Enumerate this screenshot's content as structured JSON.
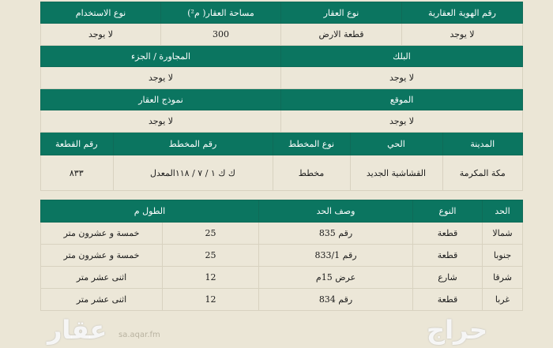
{
  "property": {
    "headers": [
      "رقم الهوية العقارية",
      "نوع العقار",
      "مساحة العقار( م²)",
      "نوع الاستخدام"
    ],
    "values": [
      "لا يوجد",
      "قطعة الارض",
      "300",
      "لا يوجد"
    ]
  },
  "block_row": {
    "headers": [
      "البلك",
      "المجاورة / الجزء"
    ],
    "values": [
      "لا يوجد",
      "لا يوجد"
    ]
  },
  "location_row": {
    "headers": [
      "الموقع",
      "نموذج العقار"
    ],
    "values": [
      "لا يوجد",
      "لا يوجد"
    ]
  },
  "plan": {
    "headers": [
      "المدينة",
      "الحي",
      "نوع المخطط",
      "رقم المخطط",
      "رقم القطعة"
    ],
    "values": [
      "مكة المكرمة",
      "القشاشية الجديد",
      "مخطط",
      "ك ك ١ / ٧ / ١١٨المعدل",
      "٨٣٣"
    ]
  },
  "boundaries": {
    "headers": [
      "الحد",
      "النوع",
      "وصف الحد",
      "الطول م"
    ],
    "rows": [
      {
        "side": "شمالا",
        "type": "قطعة",
        "desc": "رقم 835",
        "length": "25",
        "length_text": "خمسة و عشرون متر"
      },
      {
        "side": "جنوبا",
        "type": "قطعة",
        "desc": "رقم 833/1",
        "length": "25",
        "length_text": "خمسة و عشرون متر"
      },
      {
        "side": "شرقا",
        "type": "شارع",
        "desc": "عرض 15م",
        "length": "12",
        "length_text": "اثنى عشر متر"
      },
      {
        "side": "غربا",
        "type": "قطعة",
        "desc": "رقم 834",
        "length": "12",
        "length_text": "اثنى عشر متر"
      }
    ]
  },
  "watermarks": {
    "aqar": "عقار",
    "aqar_url": "sa.aqar.fm",
    "haraj": "حراج"
  },
  "colors": {
    "header": "#0b7560",
    "background": "#ebe6d6"
  }
}
